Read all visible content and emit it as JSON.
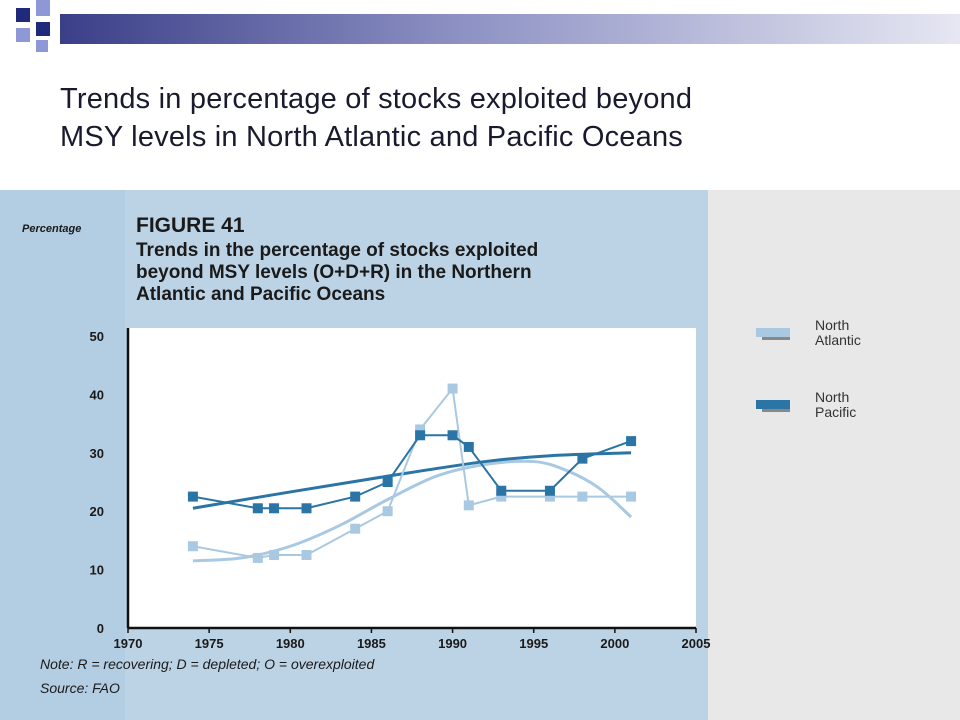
{
  "slide": {
    "title_line1": "Trends in percentage of stocks exploited beyond",
    "title_line2": "MSY levels in North Atlantic and Pacific Oceans"
  },
  "colors": {
    "north_atlantic": "#a9c9e2",
    "north_pacific": "#2a74a6",
    "left_band": "#bcd3e6",
    "right_band": "#e8e8e8",
    "deco_navy": "#1f2a7a",
    "deco_blue": "#8f98d6"
  },
  "figure": {
    "ylabel_side": "Percentage",
    "label": "FIGURE 41",
    "caption_line1": "Trends in the percentage of stocks exploited",
    "caption_line2": "beyond MSY levels (O+D+R) in the Northern",
    "caption_line3": "Atlantic and Pacific Oceans",
    "note": "Note: R = recovering; D = depleted; O = overexploited",
    "source": "Source: FAO"
  },
  "chart_data": {
    "type": "line",
    "title": "",
    "xlabel": "",
    "ylabel": "",
    "xlim": [
      1970,
      2005
    ],
    "ylim": [
      0,
      50
    ],
    "x_ticks": [
      "1970",
      "1975",
      "1980",
      "1985",
      "1990",
      "1995",
      "2000",
      "2005"
    ],
    "y_ticks": [
      "0",
      "10",
      "20",
      "30",
      "40",
      "50"
    ],
    "grid": false,
    "legend_position": "right",
    "series": [
      {
        "name": "North Atlantic",
        "color": "#a9c9e2",
        "x": [
          1974,
          1978,
          1979,
          1981,
          1984,
          1986,
          1988,
          1990,
          1991,
          1993,
          1996,
          1998,
          2001
        ],
        "y": [
          14,
          12,
          12.5,
          12.5,
          17,
          20,
          34,
          41,
          21,
          22.5,
          22.5,
          22.5,
          22.5
        ],
        "trend": [
          [
            1974,
            11.5
          ],
          [
            1977,
            12
          ],
          [
            1980,
            14
          ],
          [
            1983,
            17.5
          ],
          [
            1986,
            22
          ],
          [
            1989,
            26
          ],
          [
            1992,
            28
          ],
          [
            1995,
            28.5
          ],
          [
            1997,
            27
          ],
          [
            1999,
            24
          ],
          [
            2001,
            19
          ]
        ]
      },
      {
        "name": "North Pacific",
        "color": "#2a74a6",
        "x": [
          1974,
          1978,
          1979,
          1981,
          1984,
          1986,
          1988,
          1990,
          1991,
          1993,
          1996,
          1998,
          2001
        ],
        "y": [
          22.5,
          20.5,
          20.5,
          20.5,
          22.5,
          25,
          33,
          33,
          31,
          23.5,
          23.5,
          29,
          32
        ],
        "trend": [
          [
            1974,
            20.5
          ],
          [
            1980,
            23.3
          ],
          [
            1986,
            26
          ],
          [
            1992,
            28.5
          ],
          [
            1996,
            29.5
          ],
          [
            2001,
            30
          ]
        ]
      }
    ]
  }
}
